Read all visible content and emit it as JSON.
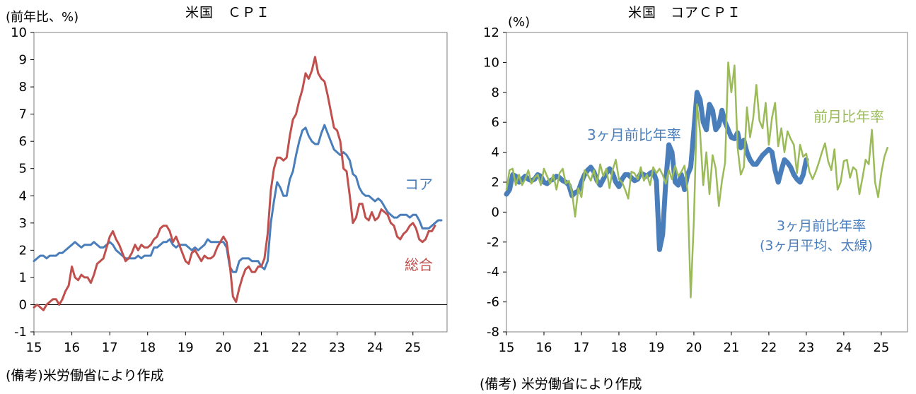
{
  "chart_data": [
    {
      "type": "line",
      "title": "米国　ＣＰＩ",
      "ylabel": "(前年比、%)",
      "ylim": [
        -1,
        10
      ],
      "yticks": [
        "-1",
        "0",
        "1",
        "2",
        "3",
        "4",
        "5",
        "6",
        "7",
        "8",
        "9",
        "10"
      ],
      "xticks": [
        "15",
        "16",
        "17",
        "18",
        "19",
        "20",
        "21",
        "22",
        "23",
        "24",
        "25"
      ],
      "xlim": [
        2015.0,
        2025.9
      ],
      "grid": false,
      "source": "(備考)米労働省により作成",
      "series": [
        {
          "name": "コア",
          "color": "#4a7ebb",
          "x_start": 2015.0,
          "x_step": 0.0833333,
          "values": [
            1.6,
            1.7,
            1.8,
            1.8,
            1.7,
            1.8,
            1.8,
            1.8,
            1.9,
            1.9,
            2.0,
            2.1,
            2.2,
            2.3,
            2.2,
            2.1,
            2.2,
            2.2,
            2.2,
            2.3,
            2.2,
            2.1,
            2.1,
            2.2,
            2.3,
            2.2,
            2.0,
            1.9,
            1.8,
            1.7,
            1.7,
            1.7,
            1.7,
            1.8,
            1.7,
            1.8,
            1.8,
            1.8,
            2.1,
            2.1,
            2.2,
            2.3,
            2.3,
            2.4,
            2.2,
            2.1,
            2.2,
            2.2,
            2.2,
            2.1,
            2.0,
            2.1,
            2.0,
            2.1,
            2.2,
            2.4,
            2.3,
            2.3,
            2.3,
            2.3,
            2.3,
            2.1,
            1.4,
            1.2,
            1.2,
            1.6,
            1.7,
            1.7,
            1.7,
            1.6,
            1.6,
            1.6,
            1.4,
            1.3,
            1.6,
            3.0,
            3.8,
            4.5,
            4.3,
            4.0,
            4.0,
            4.6,
            4.9,
            5.5,
            6.0,
            6.4,
            6.5,
            6.2,
            6.0,
            5.9,
            5.9,
            6.3,
            6.6,
            6.3,
            6.0,
            5.7,
            5.6,
            5.5,
            5.6,
            5.5,
            5.3,
            4.8,
            4.7,
            4.3,
            4.1,
            4.0,
            4.0,
            3.9,
            3.8,
            3.9,
            3.8,
            3.6,
            3.4,
            3.3,
            3.2,
            3.2,
            3.3,
            3.3,
            3.3,
            3.2,
            3.3,
            3.3,
            3.1,
            2.8,
            2.8,
            2.8,
            2.9,
            3.0,
            3.1,
            3.1
          ]
        },
        {
          "name": "総合",
          "color": "#c0504d",
          "x_start": 2015.0,
          "x_step": 0.0833333,
          "values": [
            -0.1,
            0.0,
            -0.1,
            -0.2,
            0.0,
            0.1,
            0.2,
            0.2,
            0.0,
            0.2,
            0.5,
            0.7,
            1.4,
            1.0,
            0.9,
            1.1,
            1.0,
            1.0,
            0.8,
            1.1,
            1.5,
            1.6,
            1.7,
            2.1,
            2.5,
            2.7,
            2.4,
            2.2,
            1.9,
            1.6,
            1.7,
            1.9,
            2.2,
            2.0,
            2.2,
            2.1,
            2.1,
            2.2,
            2.4,
            2.5,
            2.8,
            2.9,
            2.9,
            2.7,
            2.3,
            2.5,
            2.2,
            1.9,
            1.6,
            1.5,
            1.9,
            2.0,
            1.8,
            1.6,
            1.8,
            1.7,
            1.7,
            1.8,
            2.1,
            2.3,
            2.5,
            2.3,
            1.5,
            0.3,
            0.1,
            0.6,
            1.0,
            1.3,
            1.4,
            1.2,
            1.2,
            1.4,
            1.4,
            1.7,
            2.6,
            4.2,
            5.0,
            5.4,
            5.4,
            5.3,
            5.4,
            6.2,
            6.8,
            7.0,
            7.5,
            7.9,
            8.5,
            8.3,
            8.6,
            9.1,
            8.5,
            8.3,
            8.2,
            7.7,
            7.1,
            6.5,
            6.4,
            6.0,
            5.0,
            4.9,
            4.0,
            3.0,
            3.2,
            3.7,
            3.7,
            3.2,
            3.1,
            3.4,
            3.1,
            3.2,
            3.5,
            3.4,
            3.3,
            3.0,
            2.9,
            2.5,
            2.4,
            2.6,
            2.7,
            2.9,
            3.0,
            2.8,
            2.4,
            2.3,
            2.4,
            2.7,
            2.7,
            2.9
          ]
        }
      ],
      "annotations": [
        "コア",
        "総合"
      ]
    },
    {
      "type": "line",
      "title": "米国　コアＣＰＩ",
      "ylabel": "(%)",
      "ylim": [
        -8,
        12
      ],
      "yticks": [
        "-8",
        "-6",
        "-4",
        "-2",
        "0",
        "2",
        "4",
        "6",
        "8",
        "10",
        "12"
      ],
      "xticks": [
        "15",
        "16",
        "17",
        "18",
        "19",
        "20",
        "21",
        "22",
        "23",
        "24",
        "25"
      ],
      "xlim": [
        2015.0,
        2025.7
      ],
      "grid": false,
      "source": "(備考) 米労働省により作成",
      "series": [
        {
          "name": "3ヶ月前比年率",
          "color": "#4a7ebb",
          "x_start": 2015.0,
          "x_step": 0.0833333,
          "values": [
            1.2,
            1.5,
            2.5,
            2.4,
            2.0,
            2.2,
            2.4,
            2.2,
            2.1,
            2.2,
            2.5,
            2.4,
            2.0,
            1.9,
            2.1,
            2.2,
            2.4,
            2.3,
            2.1,
            2.0,
            1.8,
            1.1,
            1.3,
            1.4,
            2.0,
            2.5,
            2.8,
            3.0,
            2.7,
            2.1,
            1.8,
            2.2,
            2.6,
            2.9,
            2.6,
            2.0,
            1.7,
            2.2,
            2.5,
            2.5,
            2.3,
            2.1,
            2.2,
            2.6,
            2.5,
            2.4,
            2.6,
            2.7,
            2.1,
            -2.5,
            -1.5,
            2.0,
            4.5,
            4.0,
            2.0,
            1.8,
            2.5,
            1.5,
            2.5,
            3.0,
            5.5,
            8.0,
            7.5,
            6.0,
            5.5,
            7.2,
            6.8,
            5.5,
            5.8,
            6.8,
            6.0,
            5.5,
            5.0,
            4.9,
            5.3,
            4.3,
            4.8,
            4.0,
            3.5,
            3.2,
            3.2,
            3.5,
            3.8,
            4.0,
            4.2,
            4.0,
            2.8,
            2.0,
            2.8,
            3.5,
            3.3,
            3.0,
            2.5,
            2.2,
            2.0,
            2.5,
            3.5
          ]
        },
        {
          "name": "前月比年率",
          "color": "#9bbb59",
          "x_start": 2015.0,
          "x_step": 0.0833333,
          "values": [
            1.5,
            2.8,
            2.9,
            1.8,
            2.5,
            1.8,
            2.2,
            2.8,
            1.9,
            2.3,
            2.5,
            1.8,
            2.9,
            2.4,
            1.9,
            2.5,
            1.5,
            2.6,
            2.9,
            1.9,
            2.1,
            1.3,
            -0.3,
            1.6,
            1.0,
            2.8,
            2.5,
            2.1,
            2.8,
            1.9,
            3.2,
            2.4,
            2.9,
            1.6,
            2.8,
            3.5,
            2.2,
            2.0,
            1.5,
            0.9,
            2.7,
            2.6,
            2.2,
            3.0,
            2.1,
            2.5,
            1.8,
            3.0,
            2.6,
            2.9,
            2.5,
            1.9,
            2.8,
            2.2,
            3.1,
            2.4,
            2.7,
            3.1,
            1.4,
            -5.7,
            -0.5,
            7.2,
            5.3,
            1.8,
            4.0,
            1.2,
            3.8,
            2.9,
            0.4,
            2.1,
            3.3,
            10.0,
            8.0,
            9.8,
            4.3,
            2.5,
            3.0,
            7.0,
            5.0,
            6.3,
            8.5,
            6.1,
            5.6,
            7.3,
            4.5,
            6.3,
            7.3,
            4.4,
            5.6,
            4.0,
            5.4,
            4.9,
            4.5,
            2.6,
            4.5,
            3.7,
            3.9,
            2.7,
            2.2,
            2.7,
            3.3,
            4.0,
            4.6,
            3.4,
            2.8,
            4.2,
            1.5,
            2.0,
            3.4,
            3.5,
            2.3,
            3.0,
            2.8,
            1.2,
            2.3,
            3.5,
            3.2,
            5.5,
            2.0,
            1.0,
            2.6,
            3.7,
            4.3
          ]
        }
      ],
      "annotations": [
        "前月比年率",
        "3ヶ月前比年率",
        "3ヶ月前比年率",
        "(3ヶ月平均、太線)"
      ]
    }
  ]
}
